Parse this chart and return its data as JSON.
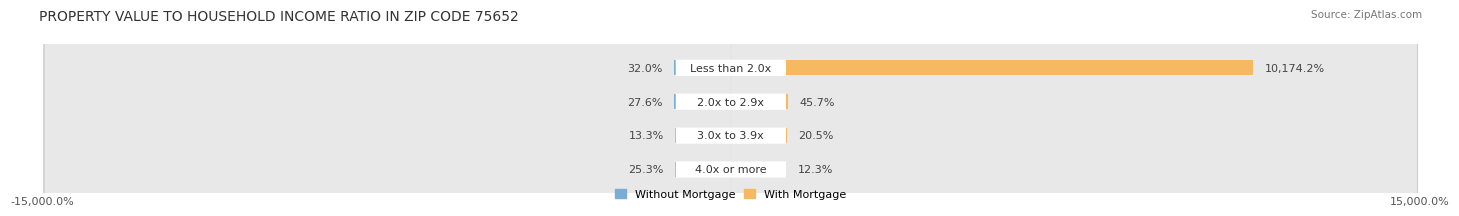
{
  "title": "PROPERTY VALUE TO HOUSEHOLD INCOME RATIO IN ZIP CODE 75652",
  "source": "Source: ZipAtlas.com",
  "categories": [
    "Less than 2.0x",
    "2.0x to 2.9x",
    "3.0x to 3.9x",
    "4.0x or more"
  ],
  "without_mortgage": [
    32.0,
    27.6,
    13.3,
    25.3
  ],
  "with_mortgage": [
    10174.2,
    45.7,
    20.5,
    12.3
  ],
  "color_without": "#7BADD4",
  "color_with": "#F5B961",
  "bg_row": "#E8E8E8",
  "bg_row_edge": "#D0D0D0",
  "label_box_color": "#FFFFFF",
  "xlim": [
    -15000,
    15000
  ],
  "x_axis_labels": [
    "15,000.0%",
    "15,000.0%"
  ],
  "legend_labels": [
    "Without Mortgage",
    "With Mortgage"
  ],
  "title_fontsize": 10,
  "label_fontsize": 8,
  "value_fontsize": 8
}
